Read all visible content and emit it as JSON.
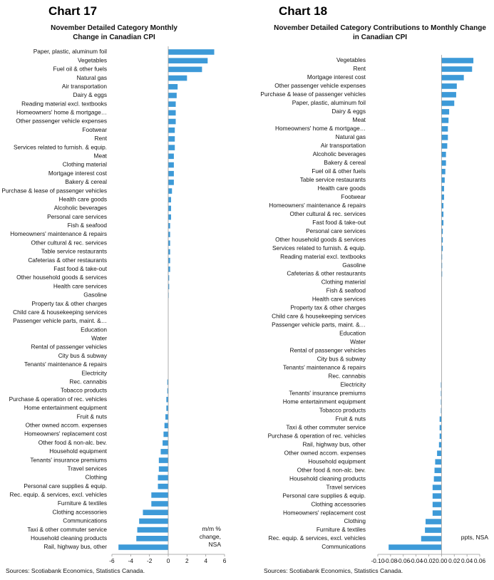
{
  "chart_data": [
    {
      "type": "bar",
      "orientation": "horizontal",
      "chart_label": "Chart 17",
      "title": "November Detailed Category Monthly Change in Canadian CPI",
      "note": "m/m % change, NSA",
      "source": "Sources: Scotiabank Economics, Statistics Canada.",
      "color": "#3d9ad8",
      "categories": [
        "Paper, plastic, aluminum foil",
        "Vegetables",
        "Fuel oil & other fuels",
        "Natural gas",
        "Air transportation",
        "Dairy & eggs",
        "Reading material excl. textbooks",
        "Homeowners' home & mortgage…",
        "Other passenger vehicle expenses",
        "Footwear",
        "Rent",
        "Services related to furnish. & equip.",
        "Meat",
        "Clothing material",
        "Mortgage interest cost",
        "Bakery & cereal",
        "Purchase & lease of passenger vehicles",
        "Health care goods",
        "Alcoholic beverages",
        "Personal care services",
        "Fish & seafood",
        "Homeowners' maintenance & repairs",
        "Other cultural & rec. services",
        "Table service restaurants",
        "Cafeterias & other restaurants",
        "Fast food & take-out",
        "Other household goods & services",
        "Health care services",
        "Gasoline",
        "Property tax & other charges",
        "Child care & housekeeping services",
        "Passenger vehicle parts, maint. &…",
        "Education",
        "Water",
        "Rental of passenger vehicles",
        "City bus & subway",
        "Tenants' maintenance & repairs",
        "Electricity",
        "Rec. cannabis",
        "Tobacco products",
        "Purchase & operation of rec. vehicles",
        "Home entertainment equipment",
        "Fruit & nuts",
        "Other owned accom. expenses",
        "Homeowners' replacement cost",
        "Other food & non-alc. bev.",
        "Household equipment",
        "Tenants' insurance premiums",
        "Travel services",
        "Clothing",
        "Personal care supplies & equip.",
        "Rec. equip. & services, excl. vehicles",
        "Furniture & textiles",
        "Clothing accessories",
        "Communications",
        "Taxi & other commuter service",
        "Household cleaning products",
        "Rail, highway bus, other"
      ],
      "values": [
        4.9,
        4.2,
        3.6,
        2.0,
        1.0,
        0.9,
        0.8,
        0.8,
        0.8,
        0.7,
        0.7,
        0.7,
        0.6,
        0.6,
        0.6,
        0.6,
        0.4,
        0.3,
        0.3,
        0.3,
        0.2,
        0.2,
        0.2,
        0.2,
        0.2,
        0.2,
        0.1,
        0.1,
        0.05,
        0,
        0,
        0,
        0,
        0,
        0,
        0,
        0,
        0,
        -0.1,
        -0.1,
        -0.2,
        -0.2,
        -0.3,
        -0.4,
        -0.5,
        -0.6,
        -0.8,
        -1.0,
        -1.0,
        -1.1,
        -1.1,
        -1.8,
        -1.8,
        -2.7,
        -3.1,
        -3.3,
        -3.4,
        -5.3
      ],
      "xlim": [
        -6,
        6
      ],
      "xticks": [
        -6,
        -4,
        -2,
        0,
        2,
        4,
        6
      ]
    },
    {
      "type": "bar",
      "orientation": "horizontal",
      "chart_label": "Chart 18",
      "title": "November Detailed Category Contributions to Monthly Change in Canadian CPI",
      "note": "ppts, NSA",
      "source": "Sources: Scotiabank Economics, Statistics Canada.",
      "color": "#3d9ad8",
      "categories": [
        "Vegetables",
        "Rent",
        "Mortgage interest cost",
        "Other passenger vehicle expenses",
        "Purchase & lease of passenger vehicles",
        "Paper, plastic, aluminum foil",
        "Dairy & eggs",
        "Meat",
        "Homeowners' home & mortgage…",
        "Natural gas",
        "Air transportation",
        "Alcoholic beverages",
        "Bakery & cereal",
        "Fuel oil & other fuels",
        "Table service restaurants",
        "Health care goods",
        "Footwear",
        "Homeowners' maintenance & repairs",
        "Other cultural & rec. services",
        "Fast food & take-out",
        "Personal care services",
        "Other household goods & services",
        "Services related to furnish. & equip.",
        "Reading material excl. textbooks",
        "Gasoline",
        "Cafeterias & other restaurants",
        "Clothing material",
        "Fish & seafood",
        "Health care services",
        "Property tax & other charges",
        "Child care & housekeeping services",
        "Passenger vehicle parts, maint. &…",
        "Education",
        "Water",
        "Rental of passenger vehicles",
        "City bus & subway",
        "Tenants' maintenance & repairs",
        "Rec. cannabis",
        "Electricity",
        "Tenants' insurance premiums",
        "Home entertainment equipment",
        "Tobacco products",
        "Fruit & nuts",
        "Taxi & other commuter service",
        "Purchase & operation of rec. vehicles",
        "Rail, highway bus, other",
        "Other owned accom. expenses",
        "Household equipment",
        "Other food & non-alc. bev.",
        "Household cleaning products",
        "Travel services",
        "Personal care supplies & equip.",
        "Clothing accessories",
        "Homeowners' replacement cost",
        "Clothing",
        "Furniture & textiles",
        "Rec. equip. & services, excl. vehicles",
        "Communications"
      ],
      "values": [
        0.05,
        0.048,
        0.035,
        0.024,
        0.023,
        0.02,
        0.012,
        0.011,
        0.01,
        0.01,
        0.009,
        0.007,
        0.007,
        0.006,
        0.005,
        0.004,
        0.004,
        0.003,
        0.003,
        0.003,
        0.002,
        0.002,
        0.002,
        0.001,
        0.001,
        0.001,
        0,
        0,
        0,
        0,
        0,
        0,
        0,
        0,
        0,
        0,
        0,
        0,
        -0.001,
        -0.001,
        -0.001,
        -0.001,
        -0.003,
        -0.003,
        -0.003,
        -0.004,
        -0.007,
        -0.01,
        -0.011,
        -0.012,
        -0.014,
        -0.014,
        -0.014,
        -0.014,
        -0.025,
        -0.026,
        -0.032,
        -0.083
      ],
      "xlim": [
        -0.1,
        0.06
      ],
      "xticks": [
        {
          "value": -0.1,
          "label": "-0.10"
        },
        -0.08,
        -0.06,
        -0.04,
        -0.02,
        {
          "value": 0,
          "label": "0.00"
        },
        0.02,
        0.04,
        0.06
      ]
    }
  ]
}
